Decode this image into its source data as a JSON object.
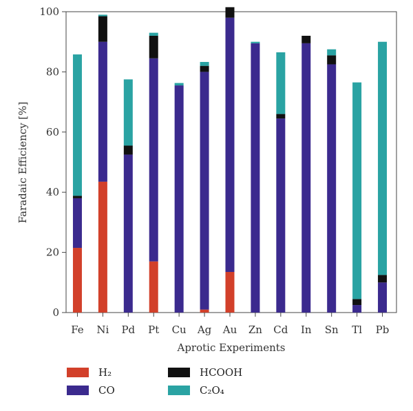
{
  "chart_data": {
    "type": "bar",
    "stacked": true,
    "categories": [
      "Fe",
      "Ni",
      "Pd",
      "Pt",
      "Cu",
      "Ag",
      "Au",
      "Zn",
      "Cd",
      "In",
      "Sn",
      "Tl",
      "Pb"
    ],
    "series": [
      {
        "name": "H₂",
        "color": "#d2402a",
        "values": [
          21.5,
          43.5,
          0,
          17,
          0,
          1,
          13.5,
          0,
          0,
          0,
          0,
          0,
          0
        ]
      },
      {
        "name": "CO",
        "color": "#3b2a8e",
        "values": [
          16.5,
          46.5,
          52.5,
          67.5,
          75.5,
          79,
          84.5,
          89.5,
          64.5,
          89.5,
          82.5,
          2.5,
          10
        ]
      },
      {
        "name": "HCOOH",
        "color": "#111111",
        "values": [
          0.8,
          8.5,
          3,
          7.5,
          0,
          2,
          3.5,
          0,
          1.5,
          2.5,
          3,
          2,
          2.5
        ]
      },
      {
        "name": "C₂O₄",
        "color": "#2aa3a3",
        "values": [
          47,
          0.5,
          22,
          1,
          0.8,
          1.3,
          0,
          0.5,
          20.5,
          0,
          2,
          72,
          77.5
        ]
      }
    ],
    "xlabel": "Aprotic Experiments",
    "ylabel": "Faradaic Efficiency [%]",
    "ylim": [
      0,
      100
    ],
    "yticks": [
      0,
      20,
      40,
      60,
      80,
      100
    ],
    "grid": false,
    "legend_position": "bottom"
  }
}
